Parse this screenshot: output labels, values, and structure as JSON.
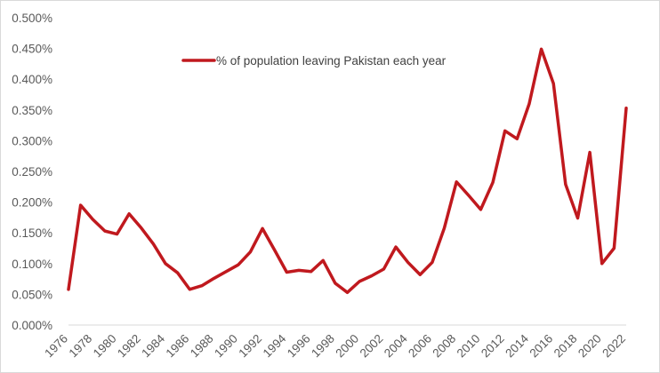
{
  "chart_data": {
    "type": "line",
    "title": "",
    "xlabel": "",
    "ylabel": "",
    "ylim": [
      0,
      0.5
    ],
    "y_tick_values": [
      0,
      0.05,
      0.1,
      0.15,
      0.2,
      0.25,
      0.3,
      0.35,
      0.4,
      0.45,
      0.5
    ],
    "y_tick_labels": [
      "0.000%",
      "0.050%",
      "0.100%",
      "0.150%",
      "0.200%",
      "0.250%",
      "0.300%",
      "0.350%",
      "0.400%",
      "0.450%",
      "0.500%"
    ],
    "x": [
      1976,
      1977,
      1978,
      1979,
      1980,
      1981,
      1982,
      1983,
      1984,
      1985,
      1986,
      1987,
      1988,
      1989,
      1990,
      1991,
      1992,
      1993,
      1994,
      1995,
      1996,
      1997,
      1998,
      1999,
      2000,
      2001,
      2002,
      2003,
      2004,
      2005,
      2006,
      2007,
      2008,
      2009,
      2010,
      2011,
      2012,
      2013,
      2014,
      2015,
      2016,
      2017,
      2018,
      2019,
      2020,
      2021,
      2022
    ],
    "x_tick_labels": [
      "1976",
      "1978",
      "1980",
      "1982",
      "1984",
      "1986",
      "1988",
      "1990",
      "1992",
      "1994",
      "1996",
      "1998",
      "2000",
      "2002",
      "2004",
      "2006",
      "2008",
      "2010",
      "2012",
      "2014",
      "2016",
      "2018",
      "2020",
      "2022"
    ],
    "grid": false,
    "legend_position": "top-center",
    "series": [
      {
        "name": "% of population leaving Pakistan each year",
        "color": "#c0191e",
        "values": [
          0.058,
          0.195,
          0.172,
          0.153,
          0.148,
          0.181,
          0.158,
          0.132,
          0.1,
          0.085,
          0.058,
          0.064,
          0.076,
          0.087,
          0.098,
          0.119,
          0.157,
          0.122,
          0.086,
          0.089,
          0.087,
          0.105,
          0.068,
          0.053,
          0.071,
          0.08,
          0.091,
          0.127,
          0.102,
          0.082,
          0.102,
          0.158,
          0.233,
          0.211,
          0.188,
          0.232,
          0.316,
          0.303,
          0.36,
          0.449,
          0.393,
          0.229,
          0.174,
          0.281,
          0.1,
          0.125,
          0.353
        ]
      }
    ]
  }
}
